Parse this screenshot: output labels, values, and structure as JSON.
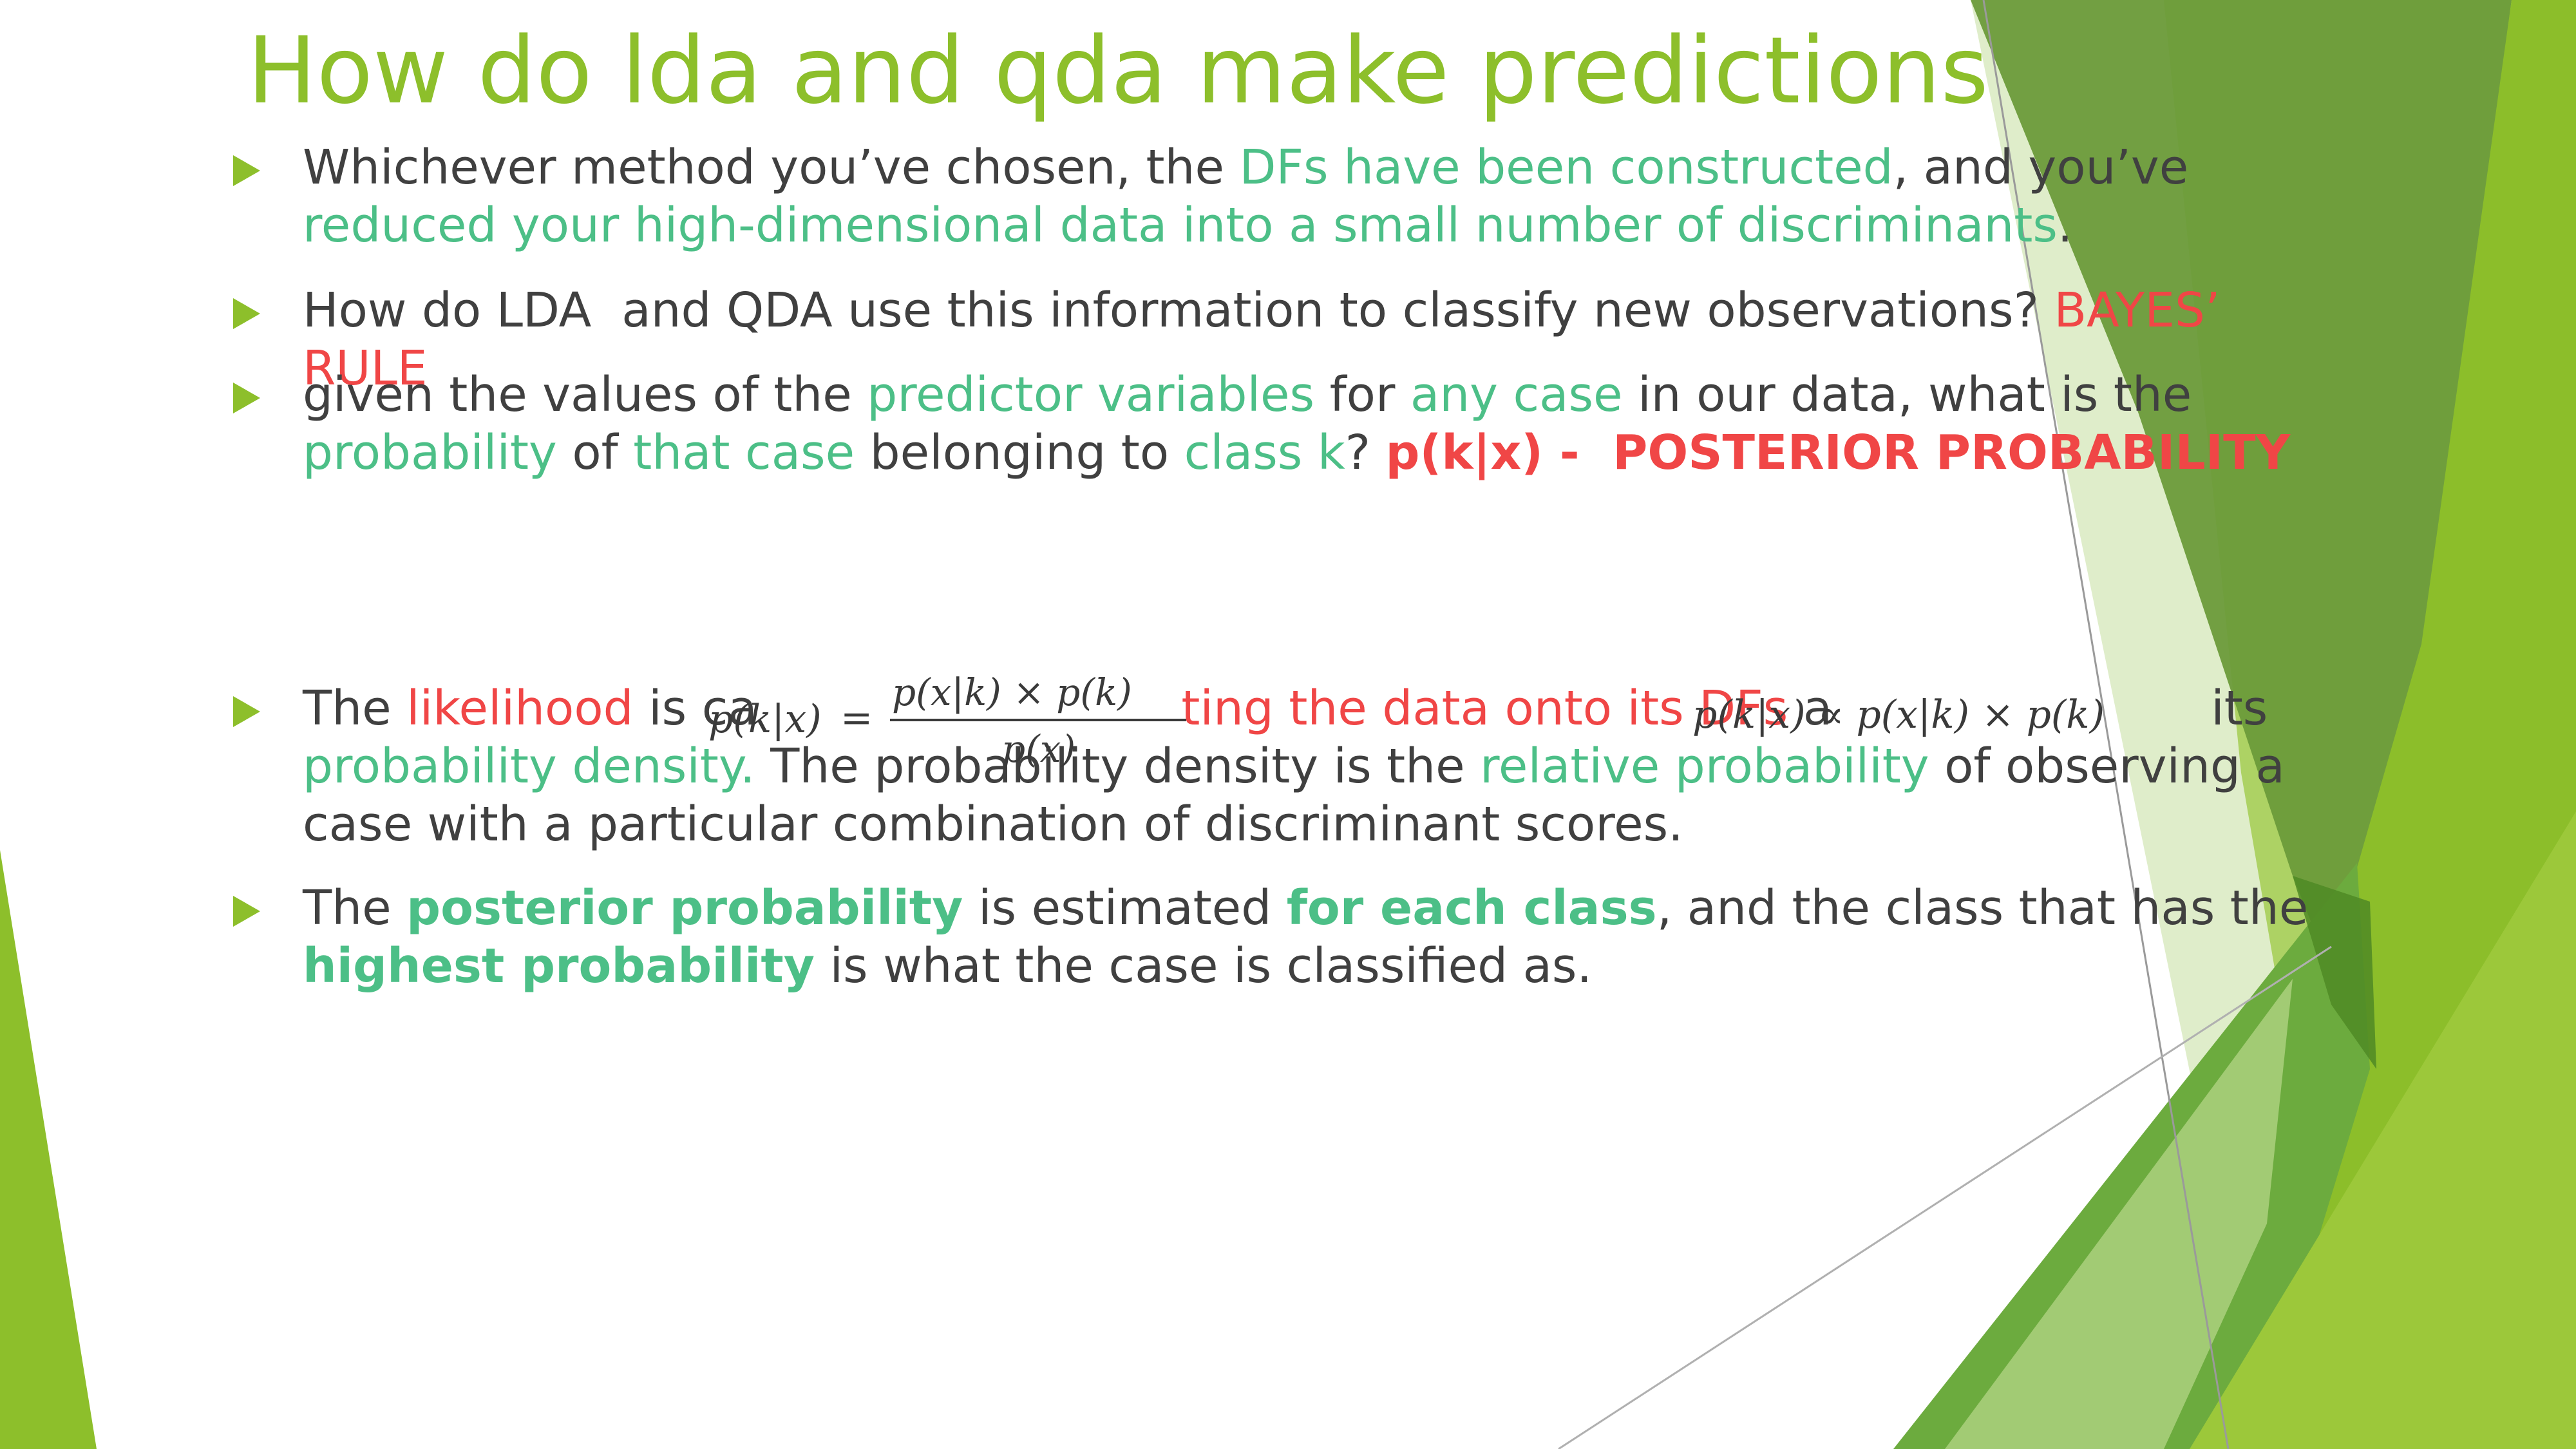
{
  "colors": {
    "title": "#8dbf2b",
    "body_text": "#404040",
    "highlight_green": "#4cbf87",
    "highlight_red": "#f04646",
    "bullet_marker": "#8dbf2b",
    "deco_light_green": "#a7cf3c",
    "deco_dark_green": "#4f8a24"
  },
  "title": "How do lda and qda make predictions",
  "bullets": [
    {
      "runs": [
        {
          "t": "Whichever method you’ve chosen, the "
        },
        {
          "t": "DFs have been constructed",
          "c": "green"
        },
        {
          "t": ", and you’ve "
        },
        {
          "t": "reduced your high-dimensional data into a small number of discriminants",
          "c": "green"
        },
        {
          "t": "."
        }
      ]
    },
    {
      "runs": [
        {
          "t": "How do LDA  and QDA use this information to classify new observations? "
        },
        {
          "t": "BAYES’ RULE",
          "c": "red"
        }
      ]
    },
    {
      "runs": [
        {
          "t": "given the values of the "
        },
        {
          "t": "predictor variables",
          "c": "green"
        },
        {
          "t": " for "
        },
        {
          "t": "any case",
          "c": "green"
        },
        {
          "t": " in our data, what is the "
        },
        {
          "t": "probability",
          "c": "green"
        },
        {
          "t": " of "
        },
        {
          "t": "that case",
          "c": "green"
        },
        {
          "t": " belonging to "
        },
        {
          "t": "class k",
          "c": "green"
        },
        {
          "t": "? "
        },
        {
          "t": "p(k|x) -  POSTERIOR PROBABILITY",
          "c": "red",
          "b": true
        }
      ]
    },
    {
      "runs": [
        {
          "t": "The "
        },
        {
          "t": "likelihood",
          "c": "red"
        },
        {
          "t": " is ca"
        },
        {
          "t": "                            "
        },
        {
          "t": "ting the data onto its DFs",
          "c": "red"
        },
        {
          "t": " a                         "
        },
        {
          "t": "its "
        },
        {
          "t": "probability dens",
          "c": "green"
        },
        {
          "t": "ity.",
          "c": "green"
        },
        {
          "t": " The probability density is the "
        },
        {
          "t": "relative probability",
          "c": "green"
        },
        {
          "t": " of observing a case with a particular combination of discriminant scores."
        }
      ]
    },
    {
      "runs": [
        {
          "t": "The "
        },
        {
          "t": "posterior probability",
          "c": "green",
          "b": true
        },
        {
          "t": " is estimated "
        },
        {
          "t": "for each class",
          "c": "green",
          "b": true
        },
        {
          "t": ", and the class that has the "
        },
        {
          "t": "highest probability",
          "c": "green",
          "b": true
        },
        {
          "t": " is what the case is classified as."
        }
      ]
    }
  ],
  "formulas": {
    "bayes_lhs": "p(k|x)",
    "bayes_eq": "=",
    "bayes_num": "p(x|k) × p(k)",
    "bayes_den": "p(x)",
    "proportional": "p(k|x) ∝ p(x|k) × p(k)"
  }
}
